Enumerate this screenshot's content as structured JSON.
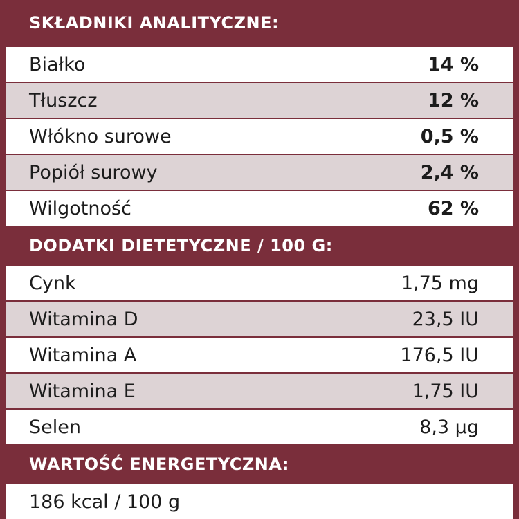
{
  "sections": [
    {
      "title": "SKŁADNIKI ANALITYCZNE:",
      "rows": [
        [
          "Białko",
          "14 %"
        ],
        [
          "Tłuszcz",
          "12 %"
        ],
        [
          "Włókno surowe",
          "0,5 %"
        ],
        [
          "Popiół surowy",
          "2,4 %"
        ],
        [
          "Wilgotność",
          "62 %"
        ]
      ]
    },
    {
      "title": "DODATKI DIETETYCZNE / 100 G:",
      "rows": [
        [
          "Cynk",
          "1,75 mg"
        ],
        [
          "Witamina D",
          "23,5 IU"
        ],
        [
          "Witamina A",
          "176,5 IU"
        ],
        [
          "Witamina E",
          "1,75 IU"
        ],
        [
          "Selen",
          "8,3 µg"
        ]
      ]
    },
    {
      "title": "WARTOŚĆ ENERGETYCZNA:",
      "rows": [
        [
          "186 kcal / 100 g"
        ]
      ]
    }
  ]
}
